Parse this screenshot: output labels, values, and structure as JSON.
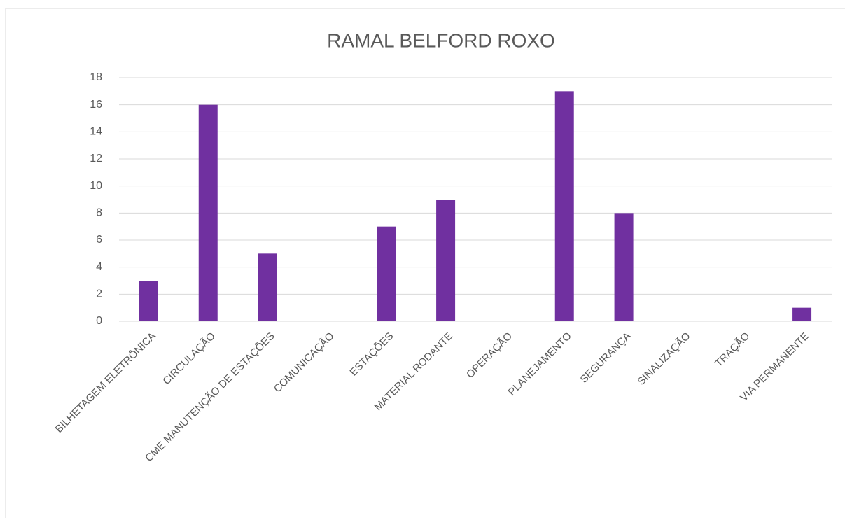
{
  "chart_data": {
    "type": "bar",
    "title": "RAMAL BELFORD ROXO",
    "categories": [
      "BILHETAGEM ELETRÔNICA",
      "CIRCULAÇÃO",
      "CME MANUTENÇÃO DE ESTAÇÕES",
      "COMUNICAÇÃO",
      "ESTAÇÕES",
      "MATERIAL RODANTE",
      "OPERAÇÃO",
      "PLANEJAMENTO",
      "SEGURANÇA",
      "SINALIZAÇÃO",
      "TRAÇÃO",
      "VIA PERMANENTE"
    ],
    "values": [
      3,
      16,
      5,
      0,
      7,
      9,
      0,
      17,
      8,
      0,
      0,
      1
    ],
    "color": "#7030a0",
    "ylim": [
      0,
      18
    ],
    "yticks": [
      0,
      2,
      4,
      6,
      8,
      10,
      12,
      14,
      16,
      18
    ],
    "grid": true
  }
}
